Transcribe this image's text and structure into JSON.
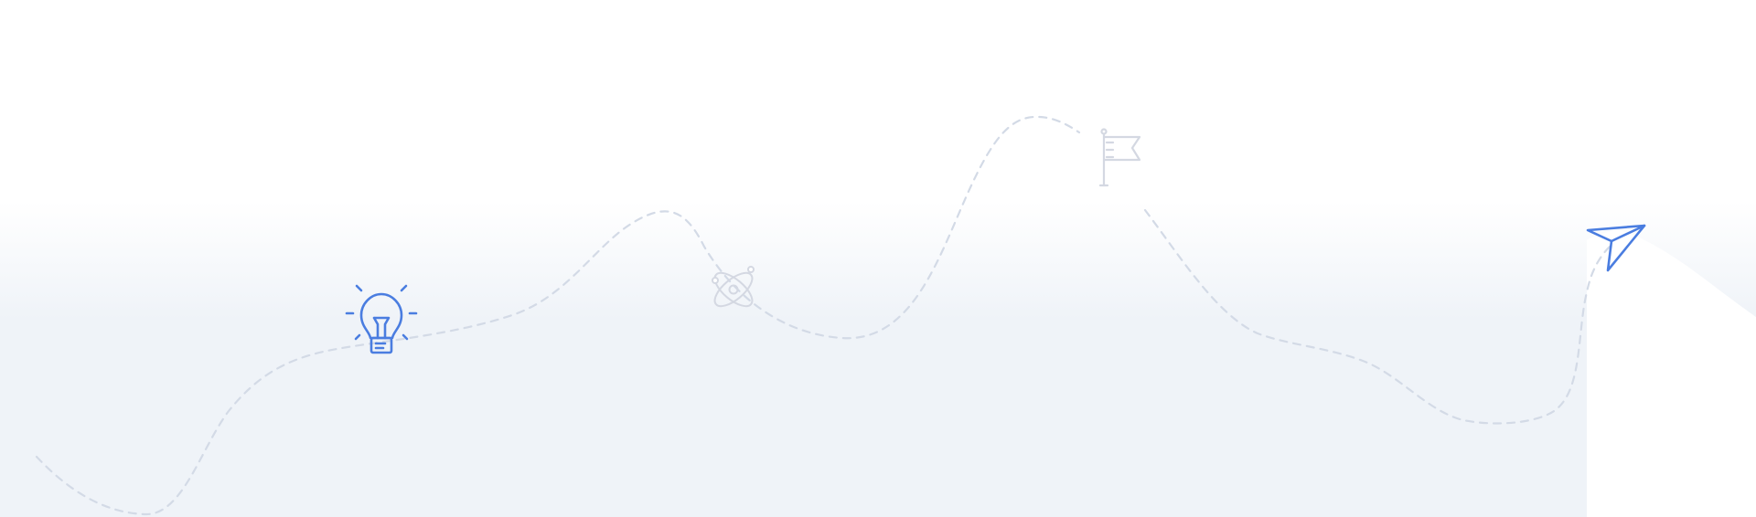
{
  "colors": {
    "background": "#ffffff",
    "wave_fill_top": "#ffffff",
    "wave_fill_bottom": "#eff3f8",
    "path_dash": "#d3dae6",
    "accent_active": "#4a7de0",
    "icon_inactive": "#d4d8e2"
  },
  "milestones": [
    {
      "icon": "lightbulb-icon",
      "state": "active"
    },
    {
      "icon": "atom-icon",
      "state": "inactive"
    },
    {
      "icon": "flag-icon",
      "state": "inactive"
    },
    {
      "icon": "paper-plane-icon",
      "state": "active"
    }
  ]
}
